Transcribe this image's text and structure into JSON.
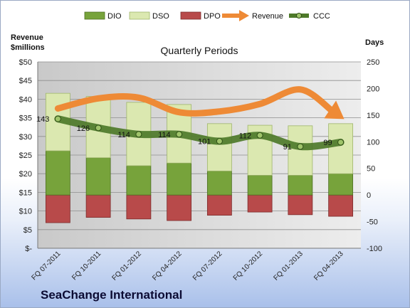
{
  "company": "SeaChange International",
  "chart_data": {
    "type": "bar",
    "title": "Quarterly Periods",
    "left_axis_title_line1": "Revenue",
    "left_axis_title_line2": "$millions",
    "right_axis_title": "Days",
    "categories": [
      "FQ 07-2011",
      "FQ 10-2011",
      "FQ 01-2012",
      "FQ 04-2012",
      "FQ 07-2012",
      "FQ 10-2012",
      "FQ 01-2013",
      "FQ 04-2013"
    ],
    "left_ticks": [
      "$-",
      "$5",
      "$10",
      "$15",
      "$20",
      "$25",
      "$30",
      "$35",
      "$40",
      "$45",
      "$50"
    ],
    "left_ylim": [
      0,
      50
    ],
    "right_ylim": [
      -100,
      250
    ],
    "right_ticks": [
      "-100",
      "-50",
      "0",
      "50",
      "100",
      "150",
      "200",
      "250"
    ],
    "grid": true,
    "legend_position": "top",
    "series": [
      {
        "name": "DIO",
        "axis": "right",
        "kind": "stacked-bar",
        "color": "#77a33b",
        "values": [
          83,
          70,
          55,
          60,
          45,
          37,
          37,
          40
        ]
      },
      {
        "name": "DSO",
        "axis": "right",
        "kind": "stacked-bar",
        "color": "#dbe8b0",
        "values": [
          108,
          115,
          119,
          110,
          89,
          94,
          93,
          94
        ]
      },
      {
        "name": "DPO",
        "axis": "right",
        "kind": "negative-bar",
        "color": "#b84a4a",
        "values": [
          -52,
          -42,
          -45,
          -48,
          -38,
          -32,
          -37,
          -40
        ]
      },
      {
        "name": "Revenue",
        "axis": "left",
        "kind": "arrow-line",
        "color": "#ee8a36",
        "values": [
          37.5,
          40.2,
          40.4,
          36.5,
          36.7,
          38.7,
          42.6,
          35.3
        ]
      },
      {
        "name": "CCC",
        "axis": "right",
        "kind": "line",
        "color": "#4e7a2a",
        "values": [
          143,
          126,
          114,
          114,
          101,
          112,
          91,
          99
        ],
        "labels": [
          "143",
          "126",
          "114",
          "114",
          "101",
          "112",
          "91",
          "99"
        ]
      }
    ]
  }
}
